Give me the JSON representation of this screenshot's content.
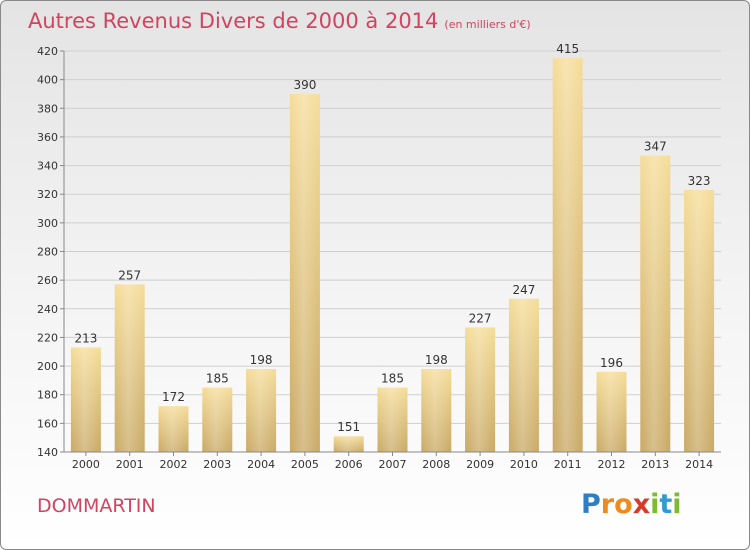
{
  "title": "Autres Revenus Divers de 2000 à 2014",
  "subtitle": "(en milliers d'€)",
  "town": "DOMMARTIN",
  "logo": {
    "letters": [
      "P",
      "r",
      "o",
      "x",
      "i",
      "t",
      "i"
    ],
    "colors": [
      "#2f7ec2",
      "#f08a1c",
      "#f08a1c",
      "#d63a2a",
      "#7dbb30",
      "#2f9bd0",
      "#7dbb30"
    ]
  },
  "chart_data": {
    "type": "bar",
    "categories": [
      "2000",
      "2001",
      "2002",
      "2003",
      "2004",
      "2005",
      "2006",
      "2007",
      "2008",
      "2009",
      "2010",
      "2011",
      "2012",
      "2013",
      "2014"
    ],
    "values": [
      213,
      257,
      172,
      185,
      198,
      390,
      151,
      185,
      198,
      227,
      247,
      415,
      196,
      347,
      323
    ],
    "ylim": [
      140,
      420
    ],
    "yticks": [
      140,
      160,
      180,
      200,
      220,
      240,
      260,
      280,
      300,
      320,
      340,
      360,
      380,
      400,
      420
    ],
    "grid": true,
    "bar_color": "#e6c67d"
  }
}
